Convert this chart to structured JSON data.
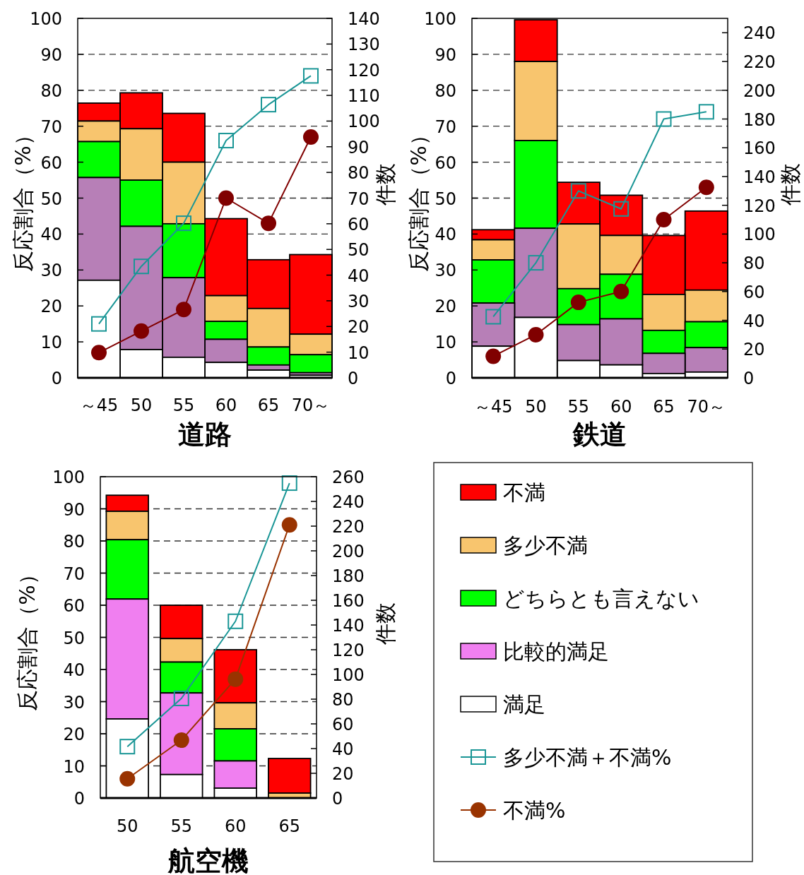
{
  "chart_data": [
    {
      "type": "bar",
      "stacked": true,
      "categories": [
        "～45",
        "50",
        "55",
        "60",
        "65",
        "70～"
      ],
      "xlabel": "道路",
      "ylabel": "反応割合（%）",
      "y2label": "件数",
      "ylim": [
        0,
        100
      ],
      "yticks": [
        0,
        10,
        20,
        30,
        40,
        50,
        60,
        70,
        80,
        90,
        100
      ],
      "y2lim": [
        0,
        140
      ],
      "y2ticks": [
        0,
        10,
        20,
        30,
        40,
        50,
        60,
        70,
        80,
        90,
        100,
        110,
        120,
        130,
        140
      ],
      "grid": "y",
      "series": [
        {
          "color": "#ffffff",
          "axis": "y2",
          "values": [
            38,
            11,
            8,
            6,
            3,
            1
          ]
        },
        {
          "color": "#b77fb7",
          "axis": "y2",
          "values": [
            40,
            48,
            31,
            9,
            2,
            1
          ]
        },
        {
          "color": "#00ff00",
          "axis": "y2",
          "values": [
            14,
            18,
            21,
            7,
            7,
            7
          ]
        },
        {
          "color": "#f8c56e",
          "axis": "y2",
          "values": [
            8,
            20,
            24,
            10,
            15,
            8
          ]
        },
        {
          "color": "#ff0000",
          "axis": "y2",
          "values": [
            7,
            14,
            19,
            30,
            19,
            31
          ]
        },
        {
          "type": "line",
          "marker": "square",
          "color": "#1a9696",
          "axis": "y",
          "values": [
            15,
            31,
            43,
            66,
            76,
            84
          ]
        },
        {
          "type": "line",
          "marker": "circle",
          "color": "#800000",
          "axis": "y",
          "values": [
            7,
            13,
            19,
            50,
            43,
            67
          ]
        }
      ]
    },
    {
      "type": "bar",
      "stacked": true,
      "categories": [
        "～45",
        "50",
        "55",
        "60",
        "65",
        "70～"
      ],
      "xlabel": "鉄道",
      "ylabel": "反応割合（%）",
      "y2label": "件数",
      "ylim": [
        0,
        100
      ],
      "yticks": [
        0,
        10,
        20,
        30,
        40,
        50,
        60,
        70,
        80,
        90,
        100
      ],
      "y2lim": [
        0,
        250
      ],
      "y2ticks": [
        0,
        20,
        40,
        60,
        80,
        100,
        120,
        140,
        160,
        180,
        200,
        220,
        240
      ],
      "grid": "y",
      "series": [
        {
          "color": "#ffffff",
          "axis": "y2",
          "values": [
            22,
            42,
            12,
            9,
            3,
            4
          ]
        },
        {
          "color": "#b77fb7",
          "axis": "y2",
          "values": [
            30,
            62,
            25,
            32,
            14,
            17
          ]
        },
        {
          "color": "#00ff00",
          "axis": "y2",
          "values": [
            30,
            61,
            25,
            31,
            16,
            18
          ]
        },
        {
          "color": "#f8c56e",
          "axis": "y2",
          "values": [
            14,
            55,
            45,
            27,
            25,
            22
          ]
        },
        {
          "color": "#ff0000",
          "axis": "y2",
          "values": [
            7,
            29,
            29,
            28,
            41,
            55
          ]
        },
        {
          "type": "line",
          "marker": "square",
          "color": "#1a9696",
          "axis": "y",
          "values": [
            17,
            32,
            52,
            47,
            72,
            74
          ]
        },
        {
          "type": "line",
          "marker": "circle",
          "color": "#800000",
          "axis": "y",
          "values": [
            6,
            12,
            21,
            24,
            44,
            53
          ]
        }
      ]
    },
    {
      "type": "bar",
      "stacked": true,
      "categories": [
        "50",
        "55",
        "60",
        "65"
      ],
      "xlabel": "航空機",
      "ylabel": "反応割合（%）",
      "y2label": "件数",
      "ylim": [
        0,
        100
      ],
      "yticks": [
        0,
        10,
        20,
        30,
        40,
        50,
        60,
        70,
        80,
        90,
        100
      ],
      "y2lim": [
        0,
        260
      ],
      "y2ticks": [
        0,
        20,
        40,
        60,
        80,
        100,
        120,
        140,
        160,
        180,
        200,
        220,
        240,
        260
      ],
      "grid": "y",
      "legend": "right",
      "series": [
        {
          "name": "満足",
          "color": "#ffffff",
          "axis": "y2",
          "values": [
            64,
            19,
            8,
            0
          ]
        },
        {
          "name": "比較的満足",
          "color": "#f07ff0",
          "axis": "y2",
          "values": [
            97,
            66,
            22,
            0
          ]
        },
        {
          "name": "どちらとも言えない",
          "color": "#00ff00",
          "axis": "y2",
          "values": [
            48,
            25,
            26,
            0
          ]
        },
        {
          "name": "多少不満",
          "color": "#f8c56e",
          "axis": "y2",
          "values": [
            23,
            19,
            21,
            4
          ]
        },
        {
          "name": "不満",
          "color": "#ff0000",
          "axis": "y2",
          "values": [
            13,
            27,
            43,
            28
          ]
        },
        {
          "name": "多少不満＋不満%",
          "type": "line",
          "marker": "square",
          "color": "#1a9696",
          "axis": "y",
          "values": [
            16,
            31,
            55,
            98
          ]
        },
        {
          "name": "不満%",
          "type": "line",
          "marker": "circle",
          "color": "#993300",
          "axis": "y",
          "values": [
            6,
            18,
            37,
            85
          ]
        }
      ]
    }
  ]
}
